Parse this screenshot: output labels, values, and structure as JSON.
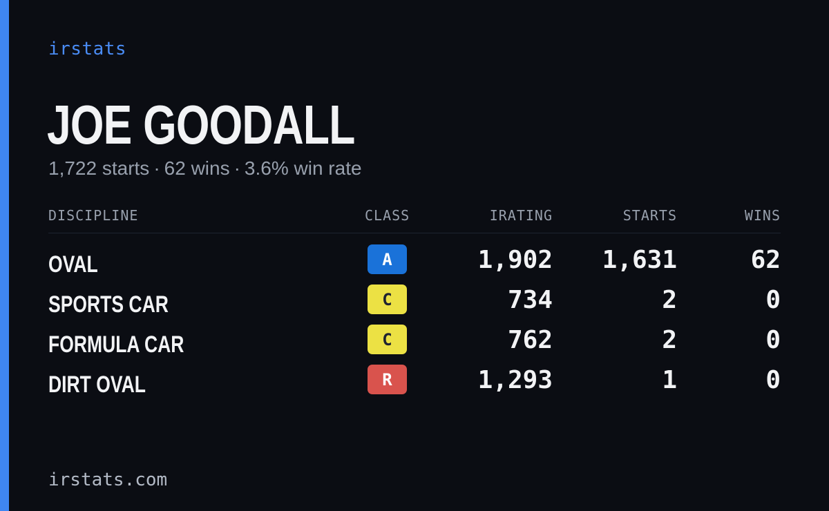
{
  "brand": "irstats",
  "player": {
    "name": "JOE GOODALL",
    "starts_text": "1,722 starts",
    "wins_text": "62 wins",
    "win_rate_text": "3.6% win rate",
    "separator": "·"
  },
  "table": {
    "headers": {
      "discipline": "DISCIPLINE",
      "class": "CLASS",
      "irating": "IRATING",
      "starts": "STARTS",
      "wins": "WINS"
    },
    "rows": [
      {
        "discipline": "OVAL",
        "class": "A",
        "class_color": "#1a72d9",
        "class_text_color": "#ffffff",
        "irating": "1,902",
        "starts": "1,631",
        "wins": "62"
      },
      {
        "discipline": "SPORTS CAR",
        "class": "C",
        "class_color": "#ece144",
        "class_text_color": "#1f2330",
        "irating": "734",
        "starts": "2",
        "wins": "0"
      },
      {
        "discipline": "FORMULA CAR",
        "class": "C",
        "class_color": "#ece144",
        "class_text_color": "#1f2330",
        "irating": "762",
        "starts": "2",
        "wins": "0"
      },
      {
        "discipline": "DIRT OVAL",
        "class": "R",
        "class_color": "#d9534d",
        "class_text_color": "#ffffff",
        "irating": "1,293",
        "starts": "1",
        "wins": "0"
      }
    ]
  },
  "footer": {
    "url": "irstats.com"
  },
  "colors": {
    "background": "#0b0d13",
    "accent": "#3f86f2",
    "muted_text": "#98a0ad"
  }
}
